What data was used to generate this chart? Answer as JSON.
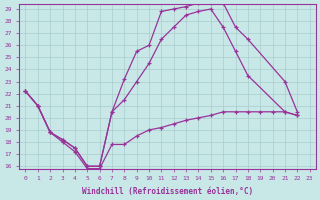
{
  "background_color": "#c8e8e8",
  "line_color": "#993399",
  "grid_color": "#aacccc",
  "xlabel": "Windchill (Refroidissement éolien,°C)",
  "xlim_min": -0.5,
  "xlim_max": 23.5,
  "ylim_min": 15.8,
  "ylim_max": 29.4,
  "yticks": [
    16,
    17,
    18,
    19,
    20,
    21,
    22,
    23,
    24,
    25,
    26,
    27,
    28,
    29
  ],
  "xticks": [
    0,
    1,
    2,
    3,
    4,
    5,
    6,
    7,
    8,
    9,
    10,
    11,
    12,
    13,
    14,
    15,
    16,
    17,
    18,
    19,
    20,
    21,
    22,
    23
  ],
  "line_upper_x": [
    0,
    1,
    2,
    3,
    4,
    5,
    6,
    7,
    8,
    9,
    10,
    11,
    12,
    13,
    14,
    15,
    16,
    17,
    18,
    21,
    22
  ],
  "line_upper_y": [
    22.2,
    21.0,
    18.8,
    18.2,
    17.5,
    16.0,
    16.0,
    20.5,
    23.2,
    25.5,
    26.0,
    28.8,
    29.0,
    29.2,
    29.5,
    29.5,
    29.5,
    27.5,
    26.5,
    23.0,
    20.5
  ],
  "line_mid_x": [
    0,
    1,
    2,
    3,
    4,
    5,
    6,
    7,
    8,
    9,
    10,
    11,
    12,
    13,
    14,
    15,
    16,
    17,
    18,
    21,
    22
  ],
  "line_mid_y": [
    22.2,
    21.0,
    18.8,
    18.2,
    17.5,
    16.0,
    16.0,
    20.5,
    21.5,
    23.0,
    24.5,
    26.5,
    27.5,
    28.5,
    28.8,
    29.0,
    27.5,
    25.5,
    23.5,
    20.5,
    20.2
  ],
  "line_lower_x": [
    0,
    1,
    2,
    3,
    4,
    5,
    6,
    7,
    8,
    9,
    10,
    11,
    12,
    13,
    14,
    15,
    16,
    17,
    18,
    19,
    20,
    21,
    22
  ],
  "line_lower_y": [
    22.2,
    21.0,
    18.8,
    18.0,
    17.2,
    15.8,
    15.8,
    17.8,
    17.8,
    18.5,
    19.0,
    19.2,
    19.5,
    19.8,
    20.0,
    20.2,
    20.5,
    20.5,
    20.5,
    20.5,
    20.5,
    20.5,
    20.2
  ]
}
